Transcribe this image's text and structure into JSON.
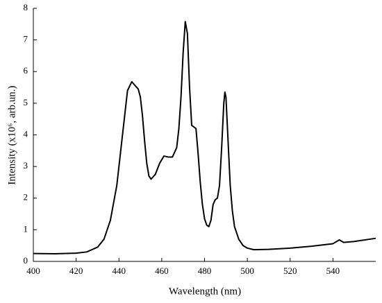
{
  "chart_data": {
    "type": "line",
    "xlabel": "Wavelength (nm)",
    "ylabel": "Intensity (x10⁶, arb.un.)",
    "series": [
      {
        "color": "#000000",
        "x": [
          400,
          410,
          420,
          425,
          430,
          433,
          436,
          439,
          441,
          443,
          444,
          446,
          447,
          449,
          450,
          451,
          452,
          453,
          454,
          455,
          457,
          459,
          461,
          463,
          465,
          467,
          468,
          469,
          470,
          471,
          472,
          473,
          474,
          475,
          476,
          477,
          478,
          479,
          480,
          481,
          482,
          483,
          484,
          485,
          486,
          487,
          488,
          489,
          489.5,
          490,
          491,
          492,
          493,
          494,
          496,
          498,
          500,
          503,
          510,
          520,
          530,
          540,
          543,
          545,
          550,
          560
        ],
        "values": [
          0.25,
          0.24,
          0.26,
          0.3,
          0.45,
          0.7,
          1.3,
          2.4,
          3.6,
          4.8,
          5.4,
          5.68,
          5.6,
          5.45,
          5.2,
          4.6,
          3.8,
          3.1,
          2.7,
          2.6,
          2.75,
          3.1,
          3.33,
          3.3,
          3.3,
          3.6,
          4.2,
          5.2,
          6.6,
          7.58,
          7.2,
          5.5,
          4.3,
          4.25,
          4.2,
          3.4,
          2.5,
          1.8,
          1.35,
          1.15,
          1.1,
          1.3,
          1.8,
          1.95,
          2.0,
          2.4,
          3.6,
          5.0,
          5.35,
          5.2,
          3.8,
          2.4,
          1.6,
          1.1,
          0.7,
          0.5,
          0.42,
          0.37,
          0.38,
          0.42,
          0.48,
          0.56,
          0.68,
          0.6,
          0.63,
          0.73
        ]
      }
    ],
    "xlim": [
      400,
      560
    ],
    "ylim": [
      0,
      8
    ],
    "xticks": [
      400,
      420,
      440,
      460,
      480,
      500,
      520,
      540
    ],
    "yticks": [
      0,
      1,
      2,
      3,
      4,
      5,
      6,
      7,
      8
    ]
  }
}
